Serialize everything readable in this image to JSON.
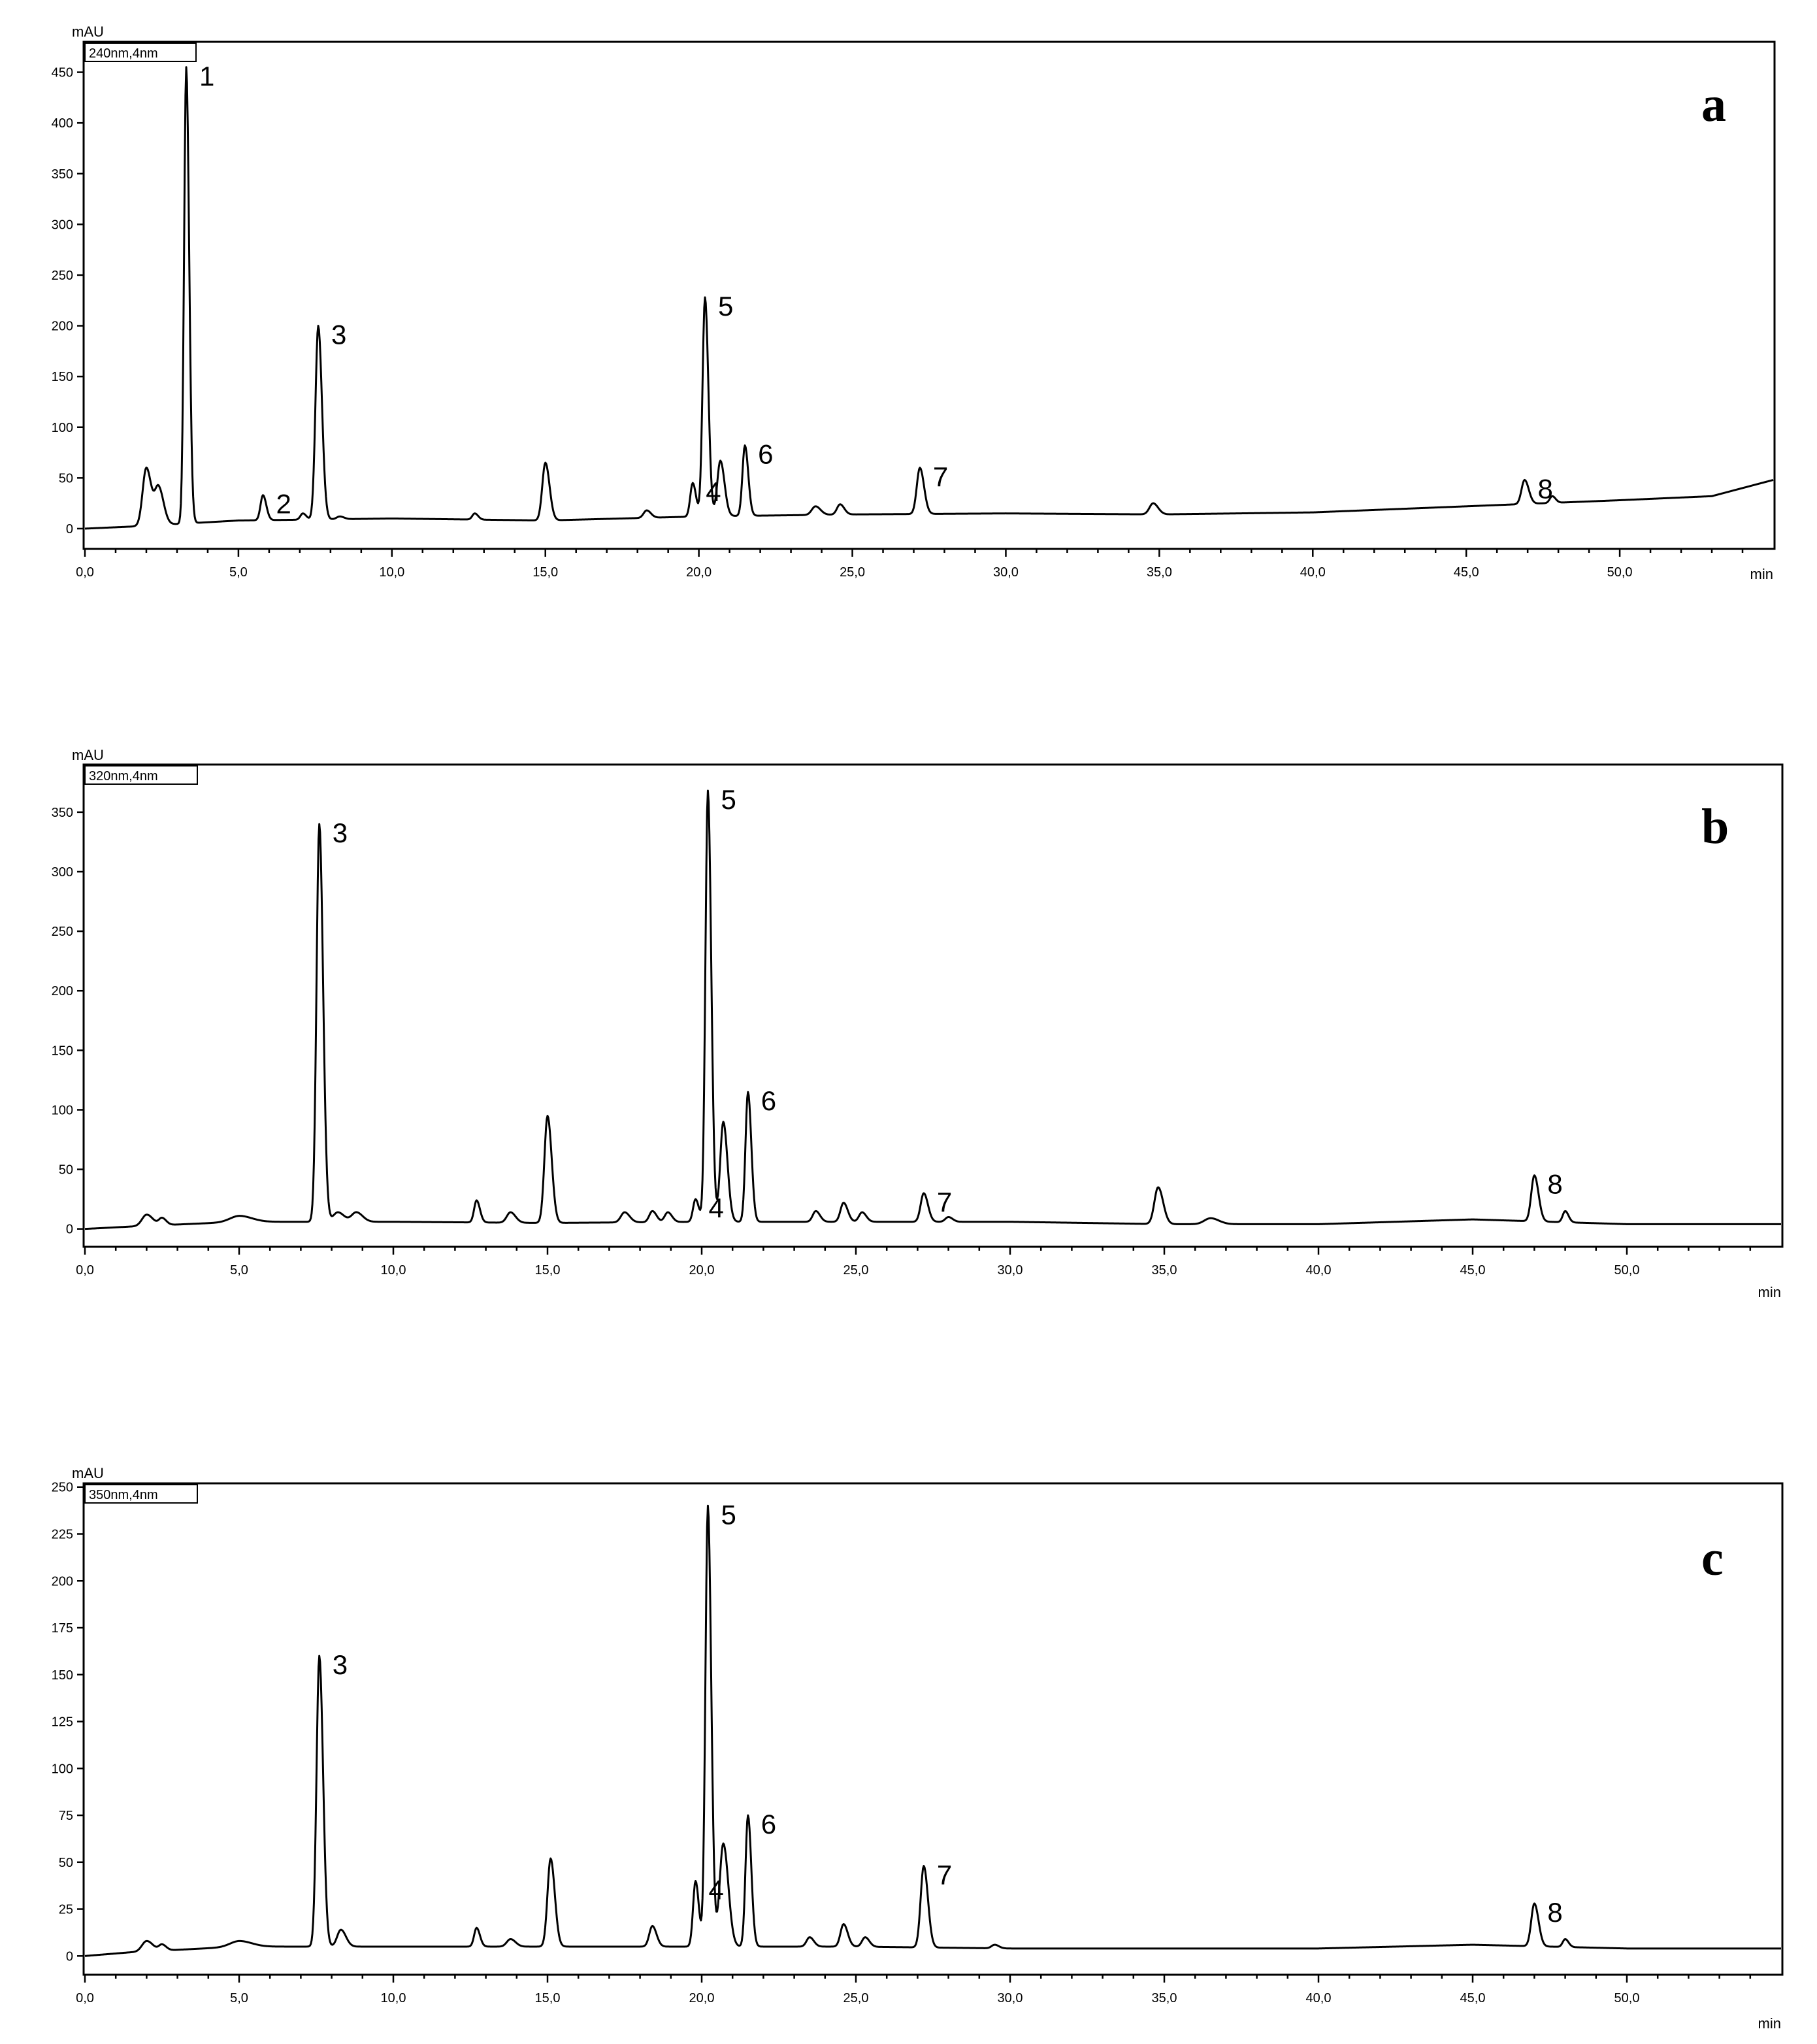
{
  "chart_data": [
    {
      "type": "line",
      "panel_letter": "a",
      "channel": "240nm,4nm",
      "y_unit": "mAU",
      "x_unit": "min",
      "xlim": [
        0,
        55
      ],
      "ylim": [
        -20,
        480
      ],
      "x_ticks": [
        0,
        5,
        10,
        15,
        20,
        25,
        30,
        35,
        40,
        45,
        50
      ],
      "x_tick_labels": [
        "0,0",
        "5,0",
        "10,0",
        "15,0",
        "20,0",
        "25,0",
        "30,0",
        "35,0",
        "40,0",
        "45,0",
        "50,0"
      ],
      "y_ticks": [
        0,
        50,
        100,
        150,
        200,
        250,
        300,
        350,
        400,
        450
      ],
      "y_tick_labels": [
        "0",
        "50",
        "100",
        "150",
        "200",
        "250",
        "300",
        "350",
        "400",
        "450"
      ],
      "baseline": [
        [
          0,
          0
        ],
        [
          1.5,
          2
        ],
        [
          5,
          8
        ],
        [
          10,
          10
        ],
        [
          15,
          8
        ],
        [
          20,
          12
        ],
        [
          25,
          14
        ],
        [
          30,
          15
        ],
        [
          35,
          14
        ],
        [
          40,
          16
        ],
        [
          45,
          22
        ],
        [
          50,
          28
        ],
        [
          53,
          32
        ],
        [
          55,
          48
        ]
      ],
      "peaks": [
        {
          "x": 2.0,
          "y": 60,
          "w": 0.12
        },
        {
          "x": 2.4,
          "y": 40,
          "w": 0.12
        },
        {
          "x": 3.3,
          "y": 455,
          "w": 0.07,
          "label": "1"
        },
        {
          "x": 5.8,
          "y": 33,
          "w": 0.08,
          "label": "2"
        },
        {
          "x": 7.1,
          "y": 15,
          "w": 0.08
        },
        {
          "x": 7.6,
          "y": 200,
          "w": 0.09,
          "label": "3"
        },
        {
          "x": 8.3,
          "y": 12,
          "w": 0.1
        },
        {
          "x": 12.7,
          "y": 15,
          "w": 0.08
        },
        {
          "x": 15.0,
          "y": 65,
          "w": 0.1
        },
        {
          "x": 18.3,
          "y": 18,
          "w": 0.1
        },
        {
          "x": 19.8,
          "y": 45,
          "w": 0.08,
          "label": "4"
        },
        {
          "x": 20.2,
          "y": 228,
          "w": 0.08,
          "label": "5"
        },
        {
          "x": 20.7,
          "y": 67,
          "w": 0.1
        },
        {
          "x": 21.5,
          "y": 82,
          "w": 0.08,
          "label": "6"
        },
        {
          "x": 23.8,
          "y": 22,
          "w": 0.12
        },
        {
          "x": 24.6,
          "y": 24,
          "w": 0.1
        },
        {
          "x": 27.2,
          "y": 60,
          "w": 0.1,
          "label": "7"
        },
        {
          "x": 34.8,
          "y": 25,
          "w": 0.12
        },
        {
          "x": 46.9,
          "y": 48,
          "w": 0.1,
          "label": "8"
        },
        {
          "x": 47.8,
          "y": 32,
          "w": 0.08
        }
      ]
    },
    {
      "type": "line",
      "panel_letter": "b",
      "channel": "320nm,4nm",
      "y_unit": "mAU",
      "x_unit": "min",
      "xlim": [
        0,
        55
      ],
      "ylim": [
        -15,
        390
      ],
      "x_ticks": [
        0,
        5,
        10,
        15,
        20,
        25,
        30,
        35,
        40,
        45,
        50
      ],
      "x_tick_labels": [
        "0,0",
        "5,0",
        "10,0",
        "15,0",
        "20,0",
        "25,0",
        "30,0",
        "35,0",
        "40,0",
        "45,0",
        "50,0"
      ],
      "y_ticks": [
        0,
        50,
        100,
        150,
        200,
        250,
        300,
        350
      ],
      "y_tick_labels": [
        "0",
        "50",
        "100",
        "150",
        "200",
        "250",
        "300",
        "350"
      ],
      "baseline": [
        [
          0,
          0
        ],
        [
          1.5,
          2
        ],
        [
          5,
          6
        ],
        [
          10,
          6
        ],
        [
          15,
          5
        ],
        [
          20,
          6
        ],
        [
          25,
          6
        ],
        [
          30,
          6
        ],
        [
          35,
          4
        ],
        [
          40,
          4
        ],
        [
          45,
          8
        ],
        [
          50,
          4
        ],
        [
          55,
          4
        ]
      ],
      "peaks": [
        {
          "x": 2.0,
          "y": 12,
          "w": 0.15
        },
        {
          "x": 2.5,
          "y": 9,
          "w": 0.1
        },
        {
          "x": 5.0,
          "y": 11,
          "w": 0.3
        },
        {
          "x": 7.6,
          "y": 340,
          "w": 0.09,
          "label": "3"
        },
        {
          "x": 8.2,
          "y": 14,
          "w": 0.15
        },
        {
          "x": 8.8,
          "y": 14,
          "w": 0.15
        },
        {
          "x": 12.7,
          "y": 24,
          "w": 0.08
        },
        {
          "x": 13.8,
          "y": 14,
          "w": 0.12
        },
        {
          "x": 15.0,
          "y": 95,
          "w": 0.1
        },
        {
          "x": 17.5,
          "y": 14,
          "w": 0.12
        },
        {
          "x": 18.4,
          "y": 15,
          "w": 0.1
        },
        {
          "x": 18.9,
          "y": 14,
          "w": 0.1
        },
        {
          "x": 19.8,
          "y": 25,
          "w": 0.08,
          "label": "4"
        },
        {
          "x": 20.2,
          "y": 368,
          "w": 0.08,
          "label": "5"
        },
        {
          "x": 20.7,
          "y": 90,
          "w": 0.1
        },
        {
          "x": 21.5,
          "y": 115,
          "w": 0.08,
          "label": "6"
        },
        {
          "x": 23.7,
          "y": 15,
          "w": 0.1
        },
        {
          "x": 24.6,
          "y": 22,
          "w": 0.1
        },
        {
          "x": 25.2,
          "y": 14,
          "w": 0.1
        },
        {
          "x": 27.2,
          "y": 30,
          "w": 0.1,
          "label": "7"
        },
        {
          "x": 28.0,
          "y": 10,
          "w": 0.1
        },
        {
          "x": 34.8,
          "y": 35,
          "w": 0.12
        },
        {
          "x": 36.5,
          "y": 9,
          "w": 0.2
        },
        {
          "x": 47.0,
          "y": 45,
          "w": 0.1,
          "label": "8"
        },
        {
          "x": 48.0,
          "y": 15,
          "w": 0.08
        }
      ]
    },
    {
      "type": "line",
      "panel_letter": "c",
      "channel": "350nm,4nm",
      "y_unit": "mAU",
      "x_unit": "min",
      "xlim": [
        0,
        55
      ],
      "ylim": [
        -10,
        252
      ],
      "x_ticks": [
        0,
        5,
        10,
        15,
        20,
        25,
        30,
        35,
        40,
        45,
        50
      ],
      "x_tick_labels": [
        "0,0",
        "5,0",
        "10,0",
        "15,0",
        "20,0",
        "25,0",
        "30,0",
        "35,0",
        "40,0",
        "45,0",
        "50,0"
      ],
      "y_ticks": [
        0,
        25,
        50,
        75,
        100,
        125,
        150,
        175,
        200,
        225,
        250
      ],
      "y_tick_labels": [
        "0",
        "25",
        "50",
        "75",
        "100",
        "125",
        "150",
        "175",
        "200",
        "225",
        "250"
      ],
      "baseline": [
        [
          0,
          0
        ],
        [
          1.5,
          2
        ],
        [
          5,
          5
        ],
        [
          10,
          5
        ],
        [
          15,
          5
        ],
        [
          20,
          5
        ],
        [
          25,
          5
        ],
        [
          30,
          4
        ],
        [
          35,
          4
        ],
        [
          40,
          4
        ],
        [
          45,
          6
        ],
        [
          50,
          4
        ],
        [
          55,
          4
        ]
      ],
      "peaks": [
        {
          "x": 2.0,
          "y": 8,
          "w": 0.15
        },
        {
          "x": 2.5,
          "y": 6,
          "w": 0.1
        },
        {
          "x": 5.0,
          "y": 8,
          "w": 0.3
        },
        {
          "x": 7.6,
          "y": 160,
          "w": 0.09,
          "label": "3"
        },
        {
          "x": 8.3,
          "y": 14,
          "w": 0.12
        },
        {
          "x": 12.7,
          "y": 15,
          "w": 0.08
        },
        {
          "x": 13.8,
          "y": 9,
          "w": 0.12
        },
        {
          "x": 15.1,
          "y": 52,
          "w": 0.1
        },
        {
          "x": 18.4,
          "y": 16,
          "w": 0.1
        },
        {
          "x": 19.8,
          "y": 40,
          "w": 0.08,
          "label": "4"
        },
        {
          "x": 20.2,
          "y": 240,
          "w": 0.08,
          "label": "5"
        },
        {
          "x": 20.7,
          "y": 60,
          "w": 0.12
        },
        {
          "x": 21.5,
          "y": 75,
          "w": 0.08,
          "label": "6"
        },
        {
          "x": 23.5,
          "y": 10,
          "w": 0.1
        },
        {
          "x": 24.6,
          "y": 17,
          "w": 0.1
        },
        {
          "x": 25.3,
          "y": 10,
          "w": 0.1
        },
        {
          "x": 27.2,
          "y": 48,
          "w": 0.1,
          "label": "7"
        },
        {
          "x": 29.5,
          "y": 6,
          "w": 0.1
        },
        {
          "x": 47.0,
          "y": 28,
          "w": 0.1,
          "label": "8"
        },
        {
          "x": 48.0,
          "y": 9,
          "w": 0.08
        }
      ]
    }
  ]
}
